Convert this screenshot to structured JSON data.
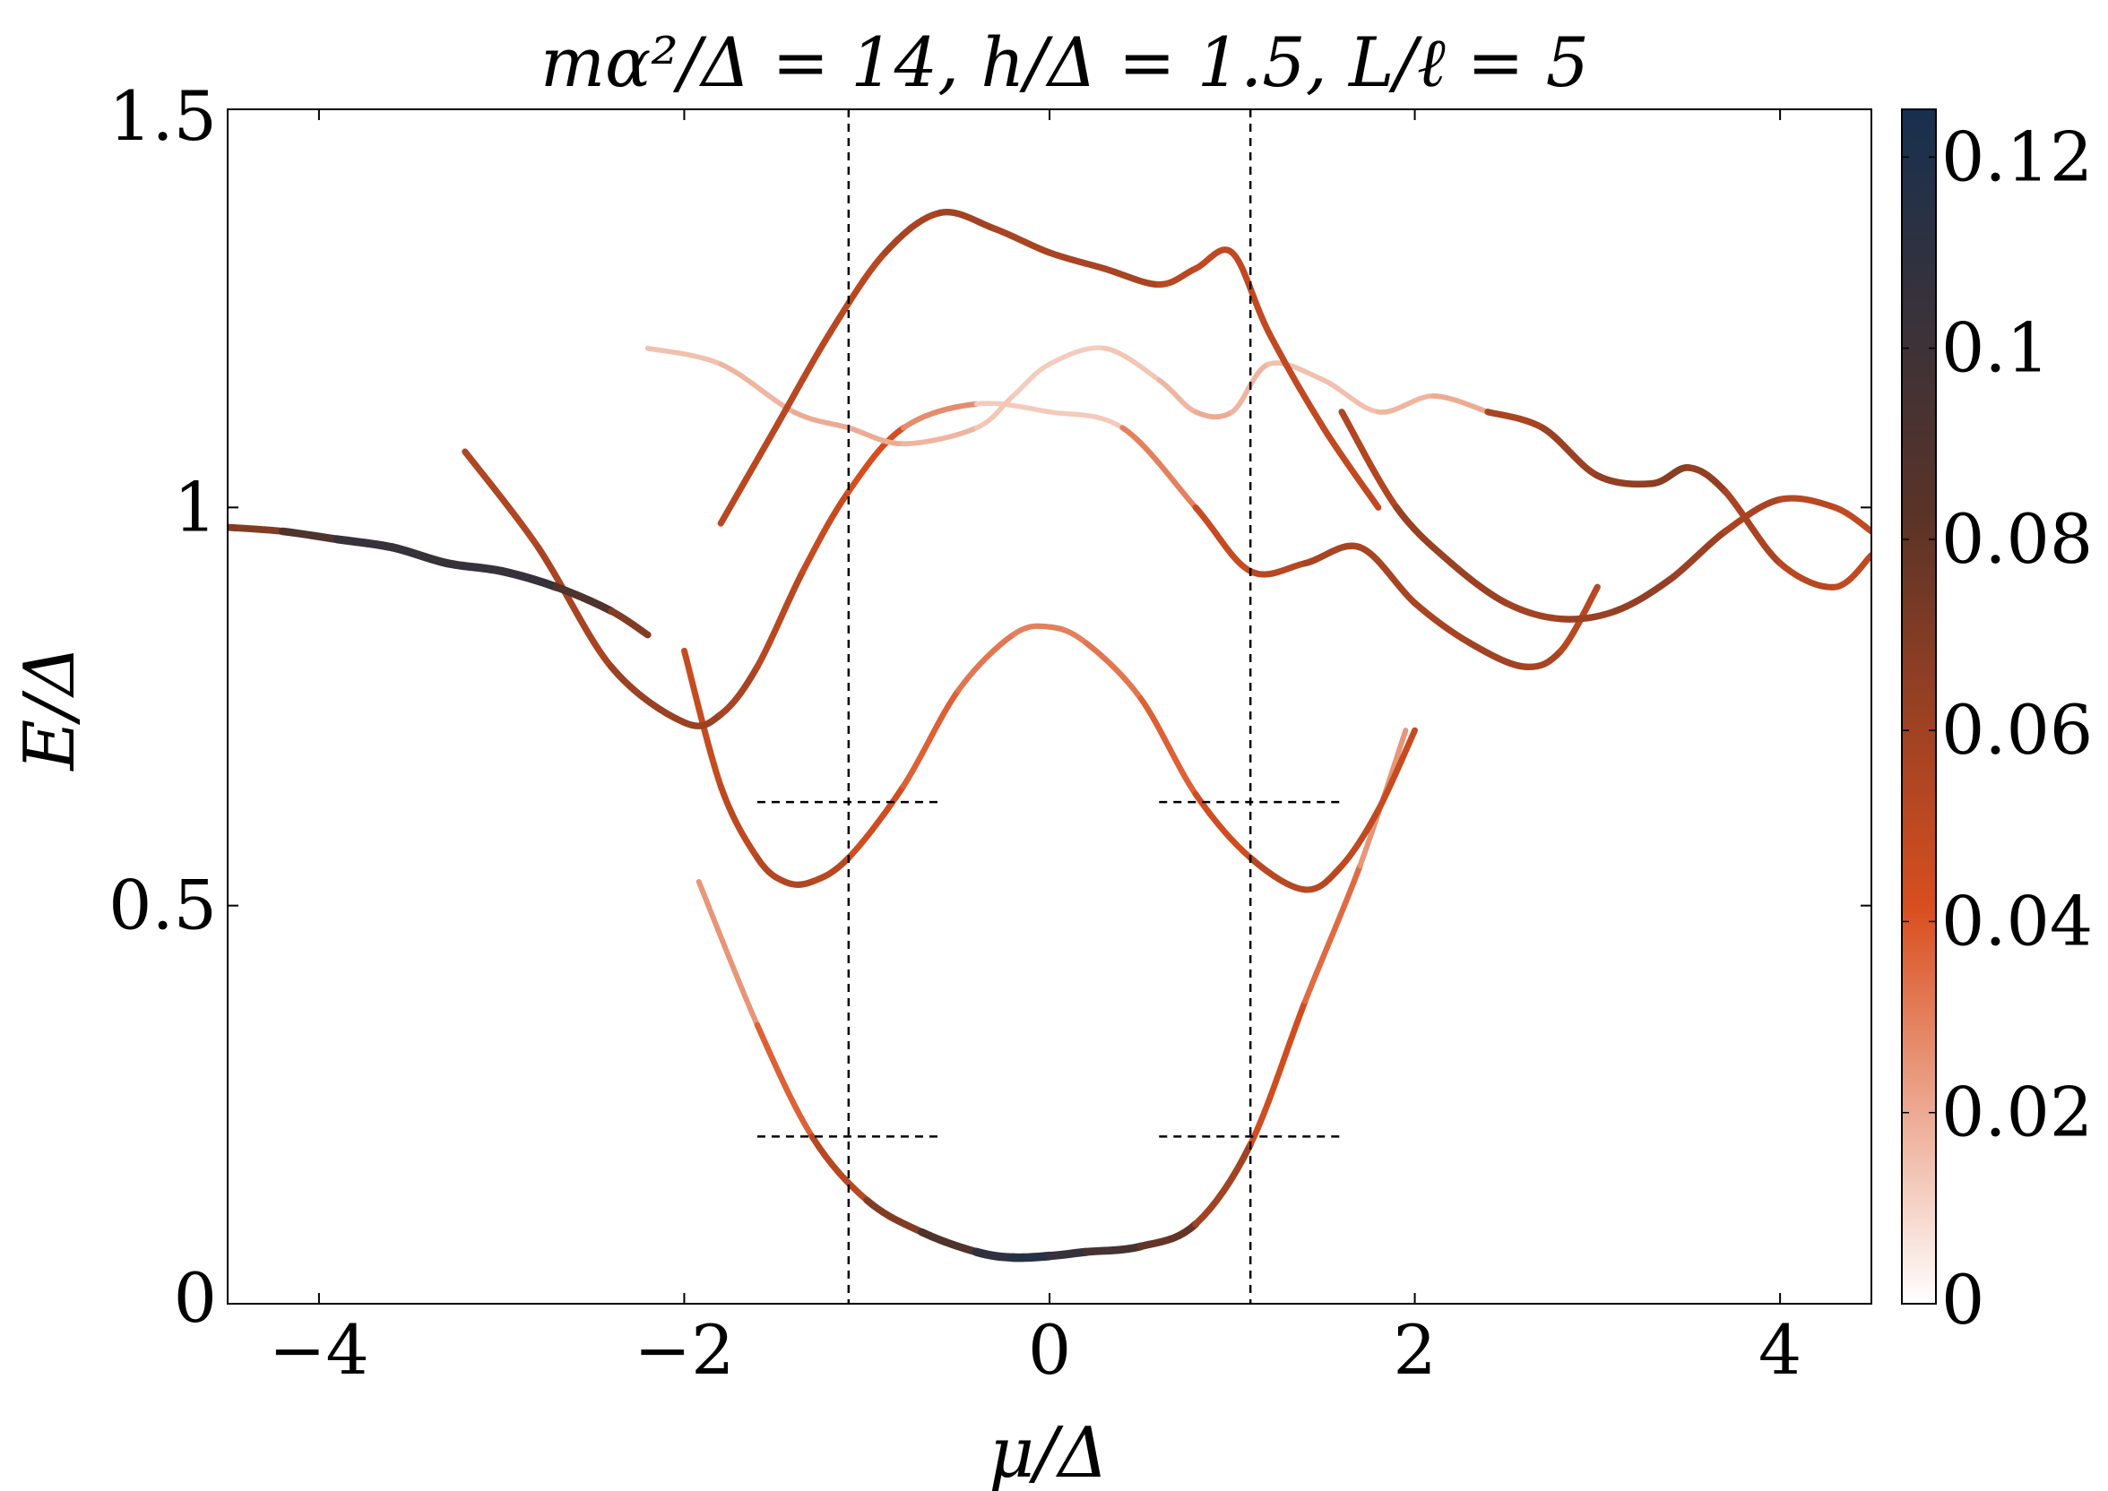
{
  "chart_data": {
    "type": "line",
    "title": "mα²/Δ = 14, h/Δ = 1.5, L/ℓ = 5",
    "xlabel": "μ/Δ",
    "ylabel": "E/Δ",
    "xlim": [
      -4.5,
      4.5
    ],
    "ylim": [
      0,
      1.5
    ],
    "xticks": [
      {
        "value": -4,
        "label": "−4"
      },
      {
        "value": -2,
        "label": "−2"
      },
      {
        "value": 0,
        "label": "0"
      },
      {
        "value": 2,
        "label": "2"
      },
      {
        "value": 4,
        "label": "4"
      }
    ],
    "yticks": [
      {
        "value": 0,
        "label": "0"
      },
      {
        "value": 0.5,
        "label": "0.5"
      },
      {
        "value": 1,
        "label": "1"
      },
      {
        "value": 1.5,
        "label": "1.5"
      }
    ],
    "grid": false,
    "colorbar": {
      "range": [
        0,
        0.125
      ],
      "ticks": [
        {
          "value": 0,
          "label": "0"
        },
        {
          "value": 0.02,
          "label": "0.02"
        },
        {
          "value": 0.04,
          "label": "0.04"
        },
        {
          "value": 0.06,
          "label": "0.06"
        },
        {
          "value": 0.08,
          "label": "0.08"
        },
        {
          "value": 0.1,
          "label": "0.1"
        },
        {
          "value": 0.12,
          "label": "0.12"
        }
      ],
      "colors": [
        "#ffffff",
        "#d94f1f",
        "#5a3327",
        "#17304f"
      ]
    },
    "reference_lines": {
      "vertical_x": [
        -1.1,
        1.1
      ],
      "horizontal": [
        {
          "y": 0.63,
          "x": [
            -1.6,
            -0.6
          ]
        },
        {
          "y": 0.63,
          "x": [
            0.6,
            1.6
          ]
        },
        {
          "y": 0.21,
          "x": [
            -1.6,
            -0.6
          ]
        },
        {
          "y": 0.21,
          "x": [
            0.6,
            1.6
          ]
        }
      ]
    },
    "series": [
      {
        "x": [
          -1.92,
          -1.6,
          -1.3,
          -1.0,
          -0.7,
          -0.4,
          -0.2,
          0.0,
          0.2,
          0.5,
          0.8,
          1.1,
          1.4,
          1.7,
          1.95
        ],
        "y": [
          0.53,
          0.35,
          0.21,
          0.13,
          0.09,
          0.065,
          0.058,
          0.06,
          0.065,
          0.072,
          0.1,
          0.2,
          0.38,
          0.55,
          0.72
        ],
        "intensity": [
          0.02,
          0.03,
          0.045,
          0.06,
          0.08,
          0.1,
          0.12,
          0.11,
          0.1,
          0.09,
          0.07,
          0.05,
          0.04,
          0.03,
          0.02
        ]
      },
      {
        "x": [
          -2.0,
          -1.8,
          -1.6,
          -1.45,
          -1.3,
          -1.1,
          -0.8,
          -0.5,
          -0.2,
          0.0,
          0.2,
          0.5,
          0.8,
          1.1,
          1.4,
          1.6,
          1.8,
          2.0
        ],
        "y": [
          0.82,
          0.65,
          0.56,
          0.53,
          0.53,
          0.56,
          0.65,
          0.77,
          0.84,
          0.85,
          0.83,
          0.76,
          0.64,
          0.56,
          0.52,
          0.55,
          0.62,
          0.72
        ],
        "intensity": [
          0.045,
          0.05,
          0.052,
          0.055,
          0.055,
          0.05,
          0.04,
          0.035,
          0.03,
          0.03,
          0.03,
          0.035,
          0.04,
          0.05,
          0.055,
          0.05,
          0.05,
          0.045
        ]
      },
      {
        "x": [
          -3.2,
          -2.8,
          -2.4,
          -2.0,
          -1.8,
          -1.6,
          -1.35,
          -1.1,
          -0.8,
          -0.4,
          0.0,
          0.4,
          0.8,
          1.1,
          1.4,
          1.7,
          2.0,
          2.3,
          2.6,
          2.8,
          3.0
        ],
        "y": [
          1.07,
          0.95,
          0.8,
          0.73,
          0.74,
          0.8,
          0.92,
          1.02,
          1.1,
          1.13,
          1.12,
          1.1,
          1.0,
          0.92,
          0.93,
          0.95,
          0.88,
          0.83,
          0.8,
          0.82,
          0.9
        ],
        "intensity": [
          0.055,
          0.055,
          0.06,
          0.065,
          0.06,
          0.055,
          0.05,
          0.045,
          0.04,
          0.015,
          0.01,
          0.015,
          0.045,
          0.05,
          0.055,
          0.06,
          0.055,
          0.06,
          0.06,
          0.055,
          0.05
        ]
      },
      {
        "x": [
          -4.5,
          -4.2,
          -3.9,
          -3.6,
          -3.3,
          -3.0,
          -2.7,
          -2.4,
          -2.2
        ],
        "y": [
          0.975,
          0.97,
          0.96,
          0.95,
          0.93,
          0.92,
          0.9,
          0.87,
          0.84
        ],
        "intensity": [
          0.06,
          0.08,
          0.1,
          0.11,
          0.1,
          0.11,
          0.1,
          0.08,
          0.06
        ]
      },
      {
        "x": [
          -2.2,
          -1.8,
          -1.4,
          -1.1,
          -0.8,
          -0.4,
          -0.2,
          0.0,
          0.3,
          0.6,
          0.8,
          1.0,
          1.2,
          1.5,
          1.8,
          2.1,
          2.4
        ],
        "y": [
          1.2,
          1.18,
          1.12,
          1.1,
          1.08,
          1.1,
          1.14,
          1.18,
          1.2,
          1.16,
          1.12,
          1.12,
          1.18,
          1.16,
          1.12,
          1.14,
          1.12
        ],
        "intensity": [
          0.015,
          0.015,
          0.02,
          0.02,
          0.02,
          0.015,
          0.012,
          0.012,
          0.012,
          0.015,
          0.02,
          0.02,
          0.015,
          0.015,
          0.015,
          0.02,
          0.02
        ]
      },
      {
        "x": [
          -1.8,
          -1.5,
          -1.2,
          -0.9,
          -0.6,
          -0.3,
          0.0,
          0.3,
          0.6,
          0.8,
          1.0,
          1.2,
          1.5,
          1.8
        ],
        "y": [
          0.98,
          1.1,
          1.22,
          1.32,
          1.37,
          1.35,
          1.32,
          1.3,
          1.28,
          1.3,
          1.32,
          1.22,
          1.1,
          1.0
        ],
        "intensity": [
          0.05,
          0.055,
          0.05,
          0.055,
          0.06,
          0.06,
          0.055,
          0.06,
          0.055,
          0.05,
          0.05,
          0.05,
          0.05,
          0.05
        ]
      },
      {
        "x": [
          1.6,
          1.9,
          2.2,
          2.5,
          2.8,
          3.1,
          3.4,
          3.7,
          4.0,
          4.3,
          4.5
        ],
        "y": [
          1.12,
          1.0,
          0.93,
          0.88,
          0.86,
          0.87,
          0.91,
          0.97,
          1.01,
          1.0,
          0.97
        ],
        "intensity": [
          0.05,
          0.06,
          0.065,
          0.06,
          0.06,
          0.065,
          0.065,
          0.06,
          0.055,
          0.05,
          0.05
        ]
      },
      {
        "x": [
          2.4,
          2.7,
          3.0,
          3.3,
          3.5,
          3.7,
          4.0,
          4.3,
          4.5
        ],
        "y": [
          1.12,
          1.1,
          1.04,
          1.03,
          1.05,
          1.02,
          0.93,
          0.9,
          0.94
        ],
        "intensity": [
          0.055,
          0.06,
          0.065,
          0.065,
          0.07,
          0.06,
          0.055,
          0.05,
          0.05
        ]
      }
    ]
  }
}
